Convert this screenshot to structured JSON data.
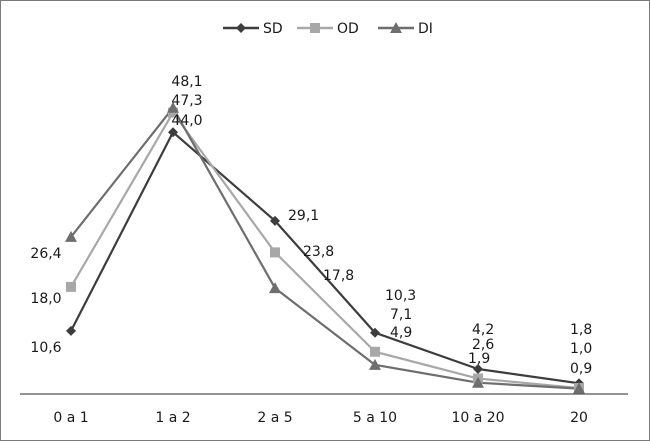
{
  "chart_data": {
    "type": "line",
    "categories": [
      "0 a 1",
      "1 a 2",
      "2 a 5",
      "5 a 10",
      "10 a 20",
      "20"
    ],
    "series": [
      {
        "name": "SD",
        "values": [
          10.6,
          44.0,
          29.1,
          10.3,
          4.2,
          1.8
        ],
        "color": "#3d3d3d",
        "marker": "diamond",
        "labels": [
          "10,6",
          "44,0",
          "29,1",
          "10,3",
          "4,2",
          "1,8"
        ]
      },
      {
        "name": "OD",
        "values": [
          18.0,
          47.3,
          23.8,
          7.1,
          2.6,
          1.0
        ],
        "color": "#a8a8a8",
        "marker": "square",
        "labels": [
          "18,0",
          "47,3",
          "23,8",
          "7,1",
          "2,6",
          "1,0"
        ]
      },
      {
        "name": "DI",
        "values": [
          26.4,
          48.1,
          17.8,
          4.9,
          1.9,
          0.9
        ],
        "color": "#6e6e6e",
        "marker": "triangle",
        "labels": [
          "26,4",
          "48,1",
          "17,8",
          "4,9",
          "1,9",
          "0,9"
        ]
      }
    ],
    "ylim": [
      0,
      52
    ],
    "legend_position": "top",
    "grid": false,
    "title": "",
    "xlabel": "",
    "ylabel": ""
  }
}
